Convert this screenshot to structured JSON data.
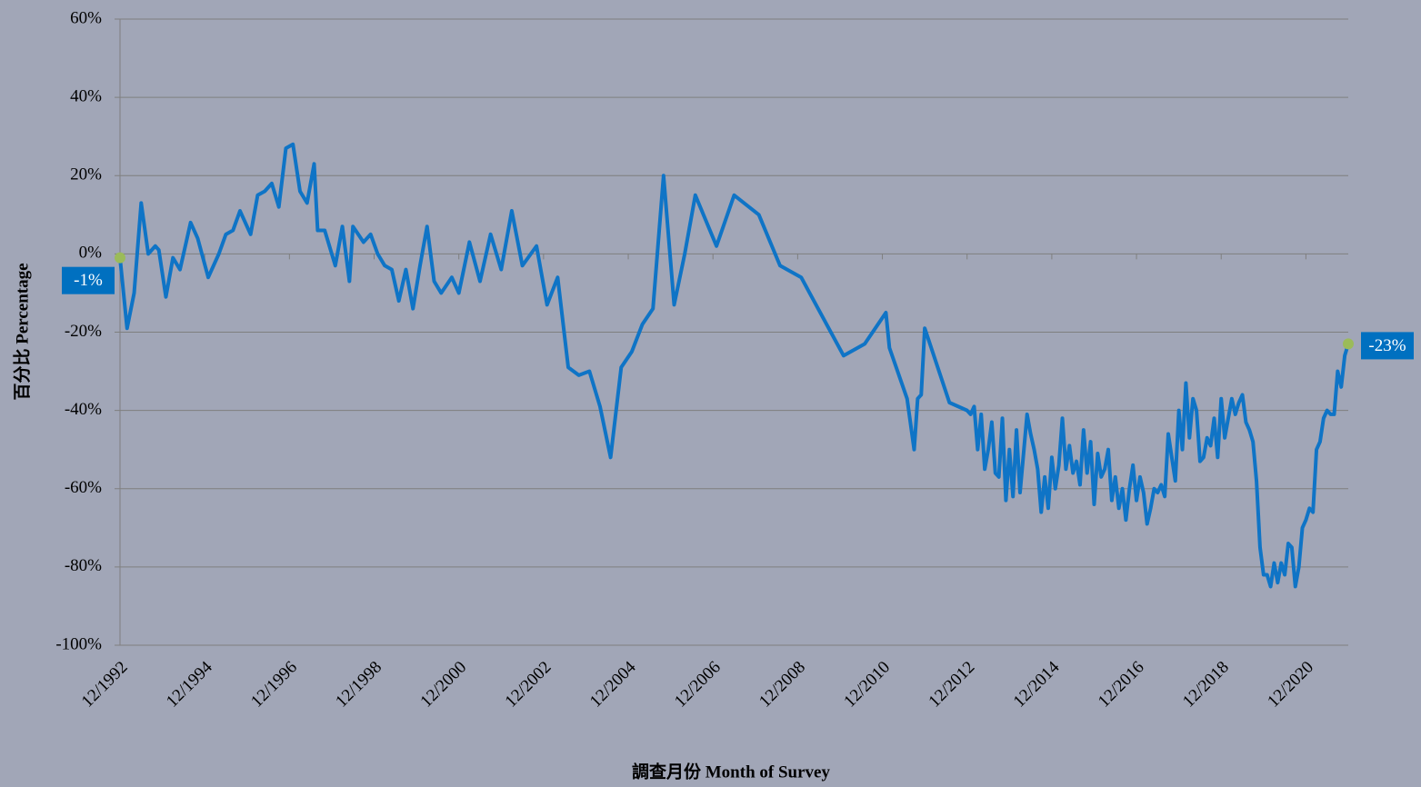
{
  "chart_data": {
    "type": "line",
    "x_label": "調查月份 Month of Survey",
    "y_label": "百分比 Percentage",
    "color": "#0f74c6",
    "grid": true,
    "xlim": [
      "12/1992",
      "12/2021"
    ],
    "xticks": [
      "12/1992",
      "12/1994",
      "12/1996",
      "12/1998",
      "12/2000",
      "12/2002",
      "12/2004",
      "12/2006",
      "12/2008",
      "12/2010",
      "12/2012",
      "12/2014",
      "12/2016",
      "12/2018",
      "12/2020"
    ],
    "ylim": [
      -100,
      60
    ],
    "yticks": [
      {
        "value": -100,
        "label": "-100%"
      },
      {
        "value": -80,
        "label": "-80%"
      },
      {
        "value": -60,
        "label": "-60%"
      },
      {
        "value": -40,
        "label": "-40%"
      },
      {
        "value": -20,
        "label": "-20%"
      },
      {
        "value": 0,
        "label": "0%"
      },
      {
        "value": 20,
        "label": "20%"
      },
      {
        "value": 40,
        "label": "40%"
      },
      {
        "value": 60,
        "label": "60%"
      }
    ],
    "x": [
      "12/1992",
      "02/1993",
      "04/1993",
      "06/1993",
      "08/1993",
      "10/1993",
      "11/1993",
      "01/1994",
      "03/1994",
      "05/1994",
      "07/1994",
      "08/1994",
      "10/1994",
      "01/1995",
      "04/1995",
      "06/1995",
      "08/1995",
      "10/1995",
      "01/1996",
      "03/1996",
      "05/1996",
      "07/1996",
      "09/1996",
      "11/1996",
      "01/1997",
      "03/1997",
      "05/1997",
      "07/1997",
      "08/1997",
      "10/1997",
      "01/1998",
      "03/1998",
      "05/1998",
      "06/1998",
      "09/1998",
      "11/1998",
      "01/1999",
      "03/1999",
      "05/1999",
      "07/1999",
      "09/1999",
      "11/1999",
      "01/2000",
      "03/2000",
      "05/2000",
      "07/2000",
      "10/2000",
      "12/2000",
      "03/2001",
      "06/2001",
      "09/2001",
      "12/2001",
      "03/2002",
      "06/2002",
      "10/2002",
      "01/2003",
      "04/2003",
      "07/2003",
      "10/2003",
      "01/2004",
      "04/2004",
      "07/2004",
      "10/2004",
      "01/2005",
      "04/2005",
      "07/2005",
      "10/2005",
      "01/2006",
      "04/2006",
      "07/2006",
      "01/2007",
      "06/2007",
      "01/2008",
      "07/2008",
      "01/2009",
      "01/2010",
      "07/2010",
      "01/2011",
      "02/2011",
      "07/2011",
      "09/2011",
      "10/2011",
      "11/2011",
      "12/2011",
      "07/2012",
      "12/2012",
      "01/2013",
      "02/2013",
      "03/2013",
      "04/2013",
      "05/2013",
      "06/2013",
      "07/2013",
      "08/2013",
      "09/2013",
      "10/2013",
      "11/2013",
      "12/2013",
      "01/2014",
      "02/2014",
      "03/2014",
      "04/2014",
      "05/2014",
      "06/2014",
      "07/2014",
      "08/2014",
      "09/2014",
      "10/2014",
      "11/2014",
      "12/2014",
      "01/2015",
      "02/2015",
      "03/2015",
      "04/2015",
      "05/2015",
      "06/2015",
      "07/2015",
      "08/2015",
      "09/2015",
      "10/2015",
      "11/2015",
      "12/2015",
      "01/2016",
      "02/2016",
      "03/2016",
      "04/2016",
      "05/2016",
      "06/2016",
      "07/2016",
      "08/2016",
      "09/2016",
      "10/2016",
      "11/2016",
      "12/2016",
      "01/2017",
      "02/2017",
      "03/2017",
      "04/2017",
      "05/2017",
      "06/2017",
      "07/2017",
      "08/2017",
      "09/2017",
      "10/2017",
      "11/2017",
      "12/2017",
      "01/2018",
      "02/2018",
      "03/2018",
      "04/2018",
      "05/2018",
      "06/2018",
      "07/2018",
      "08/2018",
      "09/2018",
      "10/2018",
      "11/2018",
      "12/2018",
      "01/2019",
      "02/2019",
      "03/2019",
      "04/2019",
      "05/2019",
      "06/2019",
      "07/2019",
      "08/2019",
      "09/2019",
      "10/2019",
      "11/2019",
      "12/2019",
      "01/2020",
      "02/2020",
      "03/2020",
      "04/2020",
      "05/2020",
      "06/2020",
      "07/2020",
      "08/2020",
      "09/2020",
      "10/2020",
      "11/2020",
      "12/2020",
      "01/2021",
      "02/2021",
      "03/2021",
      "04/2021",
      "05/2021",
      "06/2021",
      "07/2021",
      "08/2021",
      "09/2021",
      "10/2021",
      "11/2021",
      "12/2021"
    ],
    "values": [
      -1,
      -19,
      -10,
      13,
      0,
      2,
      1,
      -11,
      -1,
      -4,
      4,
      8,
      4,
      -6,
      0,
      5,
      6,
      11,
      5,
      15,
      16,
      18,
      12,
      27,
      28,
      16,
      13,
      23,
      6,
      6,
      -3,
      7,
      -7,
      7,
      3,
      5,
      0,
      -3,
      -4,
      -12,
      -4,
      -14,
      -3,
      7,
      -7,
      -10,
      -6,
      -10,
      3,
      -7,
      5,
      -4,
      11,
      -3,
      2,
      -13,
      -6,
      -29,
      -31,
      -30,
      -39,
      -52,
      -29,
      -25,
      -18,
      -14,
      20,
      -13,
      0,
      15,
      2,
      15,
      10,
      -3,
      -6,
      -26,
      -23,
      -15,
      -24,
      -37,
      -50,
      -37,
      -36,
      -19,
      -38,
      -40,
      -41,
      -39,
      -50,
      -41,
      -55,
      -50,
      -43,
      -56,
      -57,
      -42,
      -63,
      -50,
      -62,
      -45,
      -61,
      -51,
      -41,
      -46,
      -50,
      -55,
      -66,
      -57,
      -65,
      -52,
      -60,
      -54,
      -42,
      -55,
      -49,
      -56,
      -53,
      -59,
      -45,
      -56,
      -48,
      -64,
      -51,
      -57,
      -55,
      -50,
      -63,
      -57,
      -65,
      -60,
      -68,
      -60,
      -54,
      -63,
      -57,
      -61,
      -69,
      -65,
      -60,
      -61,
      -59,
      -62,
      -46,
      -52,
      -58,
      -40,
      -50,
      -33,
      -47,
      -37,
      -40,
      -53,
      -52,
      -47,
      -49,
      -42,
      -52,
      -37,
      -47,
      -42,
      -37,
      -41,
      -38,
      -36,
      -43,
      -45,
      -48,
      -58,
      -75,
      -82,
      -82,
      -85,
      -79,
      -84,
      -79,
      -82,
      -74,
      -75,
      -85,
      -80,
      -70,
      -68,
      -65,
      -66,
      -50,
      -48,
      -42,
      -40,
      -41,
      -41,
      -30,
      -34,
      -26,
      -23
    ],
    "annotations": [
      {
        "x": "12/1992",
        "value": -1,
        "label": "-1%",
        "side": "left"
      },
      {
        "x": "12/2021",
        "value": -23,
        "label": "-23%",
        "side": "right"
      }
    ],
    "marker_color": "#9bbb59",
    "annotation_color": "#0070c0"
  }
}
